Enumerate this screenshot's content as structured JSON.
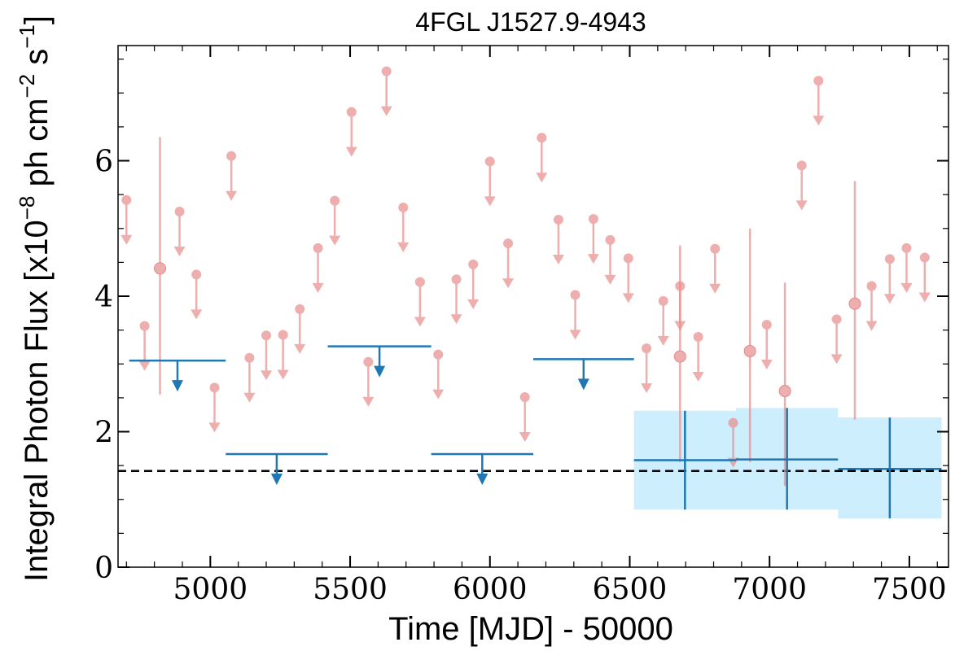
{
  "chart_data": {
    "type": "scatter",
    "title": "4FGL J1527.9-4943",
    "xlabel": "Time [MJD] - 50000",
    "ylabel": "Integral Photon Flux [x10$^{-8}$ ph cm$^{-2}$ s$^{-1}$]",
    "ylabel_parts": {
      "main": "Integral Photon Flux [x10",
      "exp1": "−8",
      "mid": " ph cm",
      "exp2": "−2",
      "mid2": " s",
      "exp3": "−1",
      "end": "]"
    },
    "xlim": [
      4670,
      7640
    ],
    "ylim": [
      0,
      7.7
    ],
    "xticks": [
      5000,
      5500,
      6000,
      6500,
      7000,
      7500
    ],
    "yticks": [
      0,
      2,
      4,
      6
    ],
    "grid": false,
    "reference_line": {
      "y": 1.42,
      "style": "dashed",
      "color": "#000000"
    },
    "colors": {
      "short_bins": "#e88c8c",
      "long_bins": "#1f77b4",
      "band": "#cdeefc"
    },
    "series": [
      {
        "role": "short-bin-upper-limits",
        "points": [
          {
            "x": 4700,
            "y": 5.42
          },
          {
            "x": 4765,
            "y": 3.56
          },
          {
            "x": 4890,
            "y": 5.25
          },
          {
            "x": 4950,
            "y": 4.32
          },
          {
            "x": 5015,
            "y": 2.65
          },
          {
            "x": 5075,
            "y": 6.07
          },
          {
            "x": 5140,
            "y": 3.09
          },
          {
            "x": 5200,
            "y": 3.42
          },
          {
            "x": 5260,
            "y": 3.43
          },
          {
            "x": 5320,
            "y": 3.81
          },
          {
            "x": 5385,
            "y": 4.71
          },
          {
            "x": 5445,
            "y": 5.41
          },
          {
            "x": 5505,
            "y": 6.72
          },
          {
            "x": 5565,
            "y": 3.03
          },
          {
            "x": 5630,
            "y": 7.32
          },
          {
            "x": 5690,
            "y": 5.31
          },
          {
            "x": 5750,
            "y": 4.21
          },
          {
            "x": 5815,
            "y": 3.14
          },
          {
            "x": 5880,
            "y": 4.25
          },
          {
            "x": 5940,
            "y": 4.47
          },
          {
            "x": 6000,
            "y": 5.99
          },
          {
            "x": 6065,
            "y": 4.78
          },
          {
            "x": 6125,
            "y": 2.51
          },
          {
            "x": 6185,
            "y": 6.34
          },
          {
            "x": 6245,
            "y": 5.13
          },
          {
            "x": 6305,
            "y": 4.02
          },
          {
            "x": 6370,
            "y": 5.14
          },
          {
            "x": 6430,
            "y": 4.83
          },
          {
            "x": 6495,
            "y": 4.56
          },
          {
            "x": 6560,
            "y": 3.23
          },
          {
            "x": 6620,
            "y": 3.93
          },
          {
            "x": 6680,
            "y": 4.15
          },
          {
            "x": 6745,
            "y": 3.4
          },
          {
            "x": 6805,
            "y": 4.7
          },
          {
            "x": 6870,
            "y": 2.13
          },
          {
            "x": 6990,
            "y": 3.58
          },
          {
            "x": 7115,
            "y": 5.93
          },
          {
            "x": 7175,
            "y": 7.18
          },
          {
            "x": 7240,
            "y": 3.66
          },
          {
            "x": 7365,
            "y": 4.15
          },
          {
            "x": 7430,
            "y": 4.55
          },
          {
            "x": 7490,
            "y": 4.71
          },
          {
            "x": 7555,
            "y": 4.57
          }
        ]
      },
      {
        "role": "short-bin-detections",
        "points": [
          {
            "x": 4820,
            "y": 4.41,
            "ylow": 2.55,
            "yhigh": 6.35
          },
          {
            "x": 6680,
            "y": 3.11,
            "ylow": 1.55,
            "yhigh": 4.75
          },
          {
            "x": 6930,
            "y": 3.19,
            "ylow": 1.55,
            "yhigh": 5.0
          },
          {
            "x": 7055,
            "y": 2.6,
            "ylow": 1.2,
            "yhigh": 4.2
          },
          {
            "x": 7305,
            "y": 3.89,
            "ylow": 2.18,
            "yhigh": 5.7
          }
        ]
      },
      {
        "role": "long-bin-upper-limits",
        "points": [
          {
            "x0": 4710,
            "x1": 5055,
            "y": 3.05
          },
          {
            "x0": 5055,
            "x1": 5420,
            "y": 1.67
          },
          {
            "x0": 5420,
            "x1": 5790,
            "y": 3.26
          },
          {
            "x0": 5790,
            "x1": 6155,
            "y": 1.67
          },
          {
            "x0": 6155,
            "x1": 6515,
            "y": 3.07
          }
        ]
      },
      {
        "role": "long-bin-detections",
        "points": [
          {
            "x0": 6515,
            "x1": 6880,
            "y": 1.58,
            "ylow": 0.85,
            "yhigh": 2.31
          },
          {
            "x0": 6880,
            "x1": 7245,
            "y": 1.59,
            "ylow": 0.85,
            "yhigh": 2.35
          },
          {
            "x0": 7245,
            "x1": 7615,
            "y": 1.45,
            "ylow": 0.72,
            "yhigh": 2.21
          }
        ]
      }
    ]
  }
}
